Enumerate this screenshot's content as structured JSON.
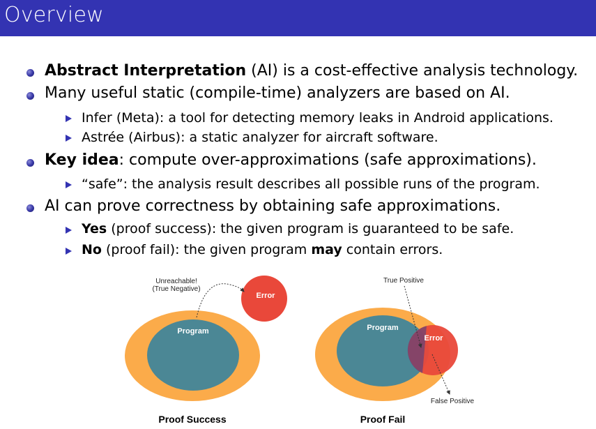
{
  "slide": {
    "title": "Overview"
  },
  "bullets": {
    "b1": {
      "bold": "Abstract Interpretation",
      "rest": " (AI) is a cost-effective analysis technology."
    },
    "b2": {
      "text": "Many useful static (compile-time) analyzers are based on AI."
    },
    "b2a": {
      "text": "Infer (Meta): a tool for detecting memory leaks in Android applications."
    },
    "b2b": {
      "text": "Astrée (Airbus): a static analyzer for aircraft software."
    },
    "b3": {
      "bold": "Key idea",
      "rest": ": compute over-approximations (safe approximations)."
    },
    "b3a": {
      "text": "“safe”: the analysis result describes all possible runs of the program."
    },
    "b4": {
      "text": "AI can prove correctness by obtaining safe approximations."
    },
    "b4a": {
      "bold": "Yes",
      "rest": " (proof success): the given program is guaranteed to be safe."
    },
    "b4b": {
      "bold": "No",
      "rest1": " (proof fail): the given program ",
      "bold2": "may",
      "rest2": " contain errors."
    }
  },
  "figure": {
    "left": {
      "annotation_line1": "Unreachable!",
      "annotation_line2": "(True Negative)",
      "program_label": "Program",
      "error_label": "Error",
      "caption": "Proof Success"
    },
    "right": {
      "true_positive": "True Positive",
      "false_positive": "False Positive",
      "program_label": "Program",
      "error_label": "Error",
      "caption": "Proof Fail"
    },
    "colors": {
      "approximation": "#fbab4a",
      "program": "#4b8795",
      "error": "#e9483a",
      "title_bar": "#3333b2"
    }
  }
}
